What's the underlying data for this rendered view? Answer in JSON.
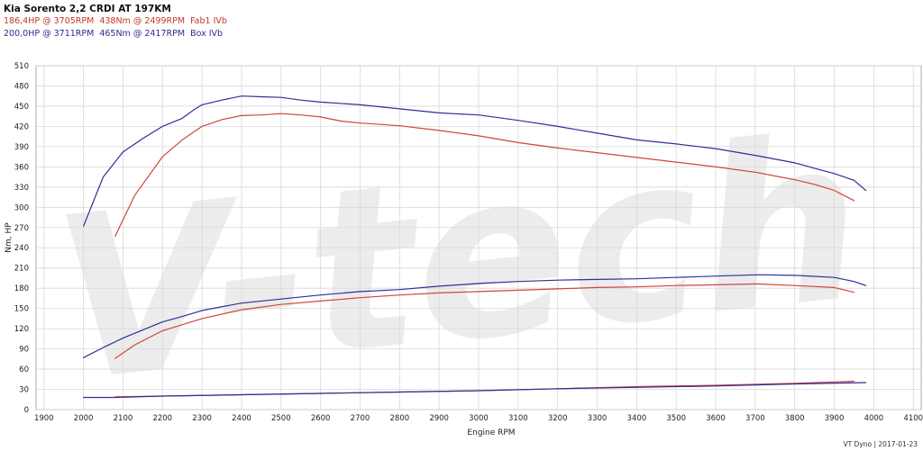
{
  "legend": {
    "title": "Kia Sorento 2,2 CRDI AT 197KM",
    "run1": {
      "hp": "186,4HP @  3705RPM",
      "nm": "438Nm @ 2499RPM",
      "label": "Fab1 IVb"
    },
    "run2": {
      "hp": "200,0HP @  3711RPM",
      "nm": "465Nm @ 2417RPM",
      "label": "Box IVb"
    }
  },
  "watermark": "V-tech",
  "footer": "VT Dyno | 2017-01-23",
  "colors": {
    "stock": "#d0453b",
    "tuned": "#2e2f95",
    "grid": "#d8d8d8",
    "watermark": "#ececec"
  },
  "chart_data": {
    "type": "line",
    "xlabel": "Engine RPM",
    "ylabel": "Nm, HP",
    "xlim": [
      1880,
      4120
    ],
    "ylim": [
      0,
      510
    ],
    "xticks": [
      1900,
      2000,
      2100,
      2200,
      2300,
      2400,
      2500,
      2600,
      2700,
      2800,
      2900,
      3000,
      3100,
      3200,
      3300,
      3400,
      3500,
      3600,
      3700,
      3800,
      3900,
      4000,
      4100
    ],
    "yticks": [
      0,
      30,
      60,
      90,
      120,
      150,
      180,
      210,
      240,
      270,
      300,
      330,
      360,
      390,
      420,
      450,
      480,
      510
    ],
    "grid": true,
    "series": [
      {
        "name": "Fab1 IVb",
        "kind": "torque",
        "color": "#d0453b",
        "x": [
          2080,
          2130,
          2200,
          2250,
          2300,
          2350,
          2400,
          2450,
          2500,
          2550,
          2600,
          2650,
          2700,
          2800,
          2900,
          3000,
          3100,
          3200,
          3300,
          3400,
          3500,
          3600,
          3700,
          3800,
          3850,
          3900,
          3950
        ],
        "y": [
          257,
          318,
          375,
          400,
          420,
          430,
          436,
          437,
          439,
          437,
          434,
          428,
          425,
          421,
          414,
          406,
          396,
          388,
          381,
          374,
          367,
          360,
          352,
          341,
          334,
          325,
          310
        ]
      },
      {
        "name": "Box IVb",
        "kind": "torque",
        "color": "#2e2f95",
        "x": [
          2000,
          2050,
          2100,
          2150,
          2200,
          2250,
          2280,
          2300,
          2350,
          2400,
          2450,
          2500,
          2550,
          2600,
          2700,
          2800,
          2900,
          3000,
          3100,
          3200,
          3300,
          3400,
          3500,
          3600,
          3700,
          3800,
          3850,
          3900,
          3950,
          3980
        ],
        "y": [
          272,
          345,
          382,
          402,
          420,
          432,
          445,
          452,
          459,
          465,
          464,
          463,
          459,
          456,
          452,
          446,
          440,
          437,
          429,
          420,
          410,
          400,
          394,
          387,
          377,
          366,
          358,
          350,
          340,
          325
        ]
      },
      {
        "name": "Fab1 IVb",
        "kind": "power",
        "color": "#d0453b",
        "x": [
          2080,
          2130,
          2200,
          2300,
          2400,
          2500,
          2600,
          2700,
          2800,
          2900,
          3000,
          3100,
          3200,
          3300,
          3400,
          3500,
          3600,
          3705,
          3800,
          3900,
          3950
        ],
        "y": [
          76,
          96,
          117,
          135,
          148,
          156,
          161,
          166,
          170,
          173,
          175,
          177,
          179,
          181,
          182,
          184,
          185,
          186.4,
          184,
          181,
          174
        ]
      },
      {
        "name": "Box IVb",
        "kind": "power",
        "color": "#2e2f95",
        "x": [
          2000,
          2050,
          2100,
          2150,
          2200,
          2250,
          2300,
          2400,
          2500,
          2600,
          2700,
          2800,
          2900,
          3000,
          3100,
          3200,
          3300,
          3400,
          3500,
          3600,
          3711,
          3800,
          3900,
          3950,
          3980
        ],
        "y": [
          77,
          92,
          106,
          118,
          130,
          138,
          147,
          158,
          164,
          170,
          175,
          178,
          183,
          187,
          190,
          192,
          193,
          194,
          196,
          198,
          200,
          199,
          196,
          190,
          184
        ]
      },
      {
        "name": "Fab1 IVb",
        "kind": "loss",
        "color": "#d0453b",
        "x": [
          2080,
          2200,
          2400,
          2600,
          2800,
          3000,
          3200,
          3400,
          3600,
          3800,
          3950
        ],
        "y": [
          19,
          20,
          22,
          24,
          26,
          28,
          31,
          34,
          36,
          39,
          42
        ]
      },
      {
        "name": "Box IVb",
        "kind": "loss",
        "color": "#2e2f95",
        "x": [
          2000,
          2080,
          2200,
          2400,
          2600,
          2800,
          3000,
          3200,
          3400,
          3600,
          3800,
          3980
        ],
        "y": [
          18,
          18,
          20,
          22,
          24,
          26,
          28,
          31,
          33,
          35,
          38,
          40
        ]
      }
    ]
  }
}
